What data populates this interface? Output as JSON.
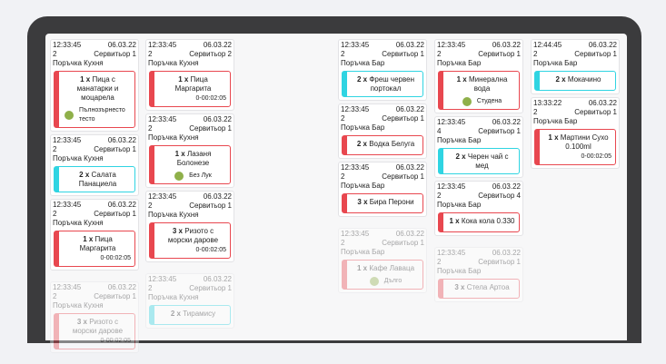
{
  "columns": [
    {
      "tickets": [
        {
          "time": "12:33:45",
          "date": "06.03.22",
          "table": "2",
          "waiter": "Сервитьор 1",
          "order": "Поръчка Кухня",
          "faded": false,
          "items": [
            {
              "qty": "1 x",
              "name": "Пица с манатарки и моцарела",
              "accent": "#e8474f",
              "modifier": "Пълнозърнесто тесто"
            }
          ]
        },
        {
          "time": "12:33:45",
          "date": "06.03.22",
          "table": "2",
          "waiter": "Сервитьор 1",
          "order": "Поръчка Кухня",
          "faded": false,
          "items": [
            {
              "qty": "2 x",
              "name": "Салата Панациела",
              "accent": "#2fd4e2"
            }
          ]
        },
        {
          "time": "12:33:45",
          "date": "06.03.22",
          "table": "2",
          "waiter": "Сервитьор 1",
          "order": "Поръчка Кухня",
          "faded": false,
          "items": [
            {
              "qty": "1 x",
              "name": "Пица Маргарита",
              "accent": "#e8474f",
              "timer": "0-00:02:05"
            }
          ]
        },
        {
          "time": "12:33:45",
          "date": "06.03.22",
          "table": "2",
          "waiter": "Сервитьор 1",
          "order": "Поръчка Кухня",
          "faded": true,
          "items": [
            {
              "qty": "3 x",
              "name": "Ризото с морски дарове",
              "accent": "#e8474f",
              "timer": "0-00:02:05"
            }
          ]
        }
      ]
    },
    {
      "tickets": [
        {
          "time": "12:33:45",
          "date": "06.03.22",
          "table": "2",
          "waiter": "Сервитьор 2",
          "order": "Поръчка Кухня",
          "faded": false,
          "items": [
            {
              "qty": "1 x",
              "name": "Пица Маргарита",
              "accent": "#e8474f",
              "timer": "0-00:02:05"
            }
          ]
        },
        {
          "time": "12:33:45",
          "date": "06.03.22",
          "table": "2",
          "waiter": "Сервитьор 1",
          "order": "Поръчка Кухня",
          "faded": false,
          "items": [
            {
              "qty": "1 x",
              "name": "Лазаня Болонезе",
              "accent": "#e8474f",
              "modifier": "Без Лук"
            }
          ]
        },
        {
          "time": "12:33:45",
          "date": "06.03.22",
          "table": "2",
          "waiter": "Сервитьор 1",
          "order": "Поръчка Кухня",
          "faded": false,
          "items": [
            {
              "qty": "3 x",
              "name": "Ризото с морски дарове",
              "accent": "#e8474f",
              "timer": "0-00:02:05"
            }
          ]
        },
        {
          "time": "12:33:45",
          "date": "06.03.22",
          "table": "2",
          "waiter": "Сервитьор 1",
          "order": "Поръчка Кухня",
          "faded": true,
          "items": [
            {
              "qty": "2 x",
              "name": "Тирамису",
              "accent": "#2fd4e2"
            }
          ]
        }
      ]
    },
    {
      "tickets": [
        {
          "time": "12:33:45",
          "date": "06.03.22",
          "table": "2",
          "waiter": "Сервитьор 1",
          "order": "Поръчка Бар",
          "faded": false,
          "items": [
            {
              "qty": "2 x",
              "name": "Фреш червен портокал",
              "accent": "#2fd4e2"
            }
          ]
        },
        {
          "time": "12:33:45",
          "date": "06.03.22",
          "table": "2",
          "waiter": "Сервитьор 1",
          "order": "Поръчка Бар",
          "faded": false,
          "items": [
            {
              "qty": "2 x",
              "name": "Водка Белуга",
              "accent": "#e8474f"
            }
          ]
        },
        {
          "time": "12:33:45",
          "date": "06.03.22",
          "table": "2",
          "waiter": "Сервитьор 1",
          "order": "Поръчка Бар",
          "faded": false,
          "items": [
            {
              "qty": "3 x",
              "name": "Бира Перони",
              "accent": "#e8474f"
            }
          ]
        },
        {
          "time": "12:33:45",
          "date": "06.03.22",
          "table": "2",
          "waiter": "Сервитьор 1",
          "order": "Поръчка Бар",
          "faded": true,
          "items": [
            {
              "qty": "1 x",
              "name": "Кафе Лаваца",
              "accent": "#e8474f",
              "modifier": "Дълго"
            }
          ]
        }
      ]
    },
    {
      "tickets": [
        {
          "time": "12:33:45",
          "date": "06.03.22",
          "table": "2",
          "waiter": "Сервитьор 1",
          "order": "Поръчка Бар",
          "faded": false,
          "items": [
            {
              "qty": "1 x",
              "name": "Минерална вода",
              "accent": "#e8474f",
              "modifier": "Студена"
            }
          ]
        },
        {
          "time": "12:33:45",
          "date": "06.03.22",
          "table": "4",
          "waiter": "Сервитьор 1",
          "order": "Поръчка Бар",
          "faded": false,
          "items": [
            {
              "qty": "2 x",
              "name": "Черен чай с мед",
              "accent": "#2fd4e2"
            }
          ]
        },
        {
          "time": "12:33:45",
          "date": "06.03.22",
          "table": "2",
          "waiter": "Сервитьор 4",
          "order": "Поръчка Бар",
          "faded": false,
          "items": [
            {
              "qty": "1 x",
              "name": "Кока кола 0.330",
              "accent": "#e8474f"
            }
          ]
        },
        {
          "time": "12:33:45",
          "date": "06.03.22",
          "table": "2",
          "waiter": "Сервитьор 1",
          "order": "Поръчка Бар",
          "faded": true,
          "items": [
            {
              "qty": "3 x",
              "name": "Стела Артоа",
              "accent": "#e8474f"
            }
          ]
        }
      ]
    },
    {
      "tickets": [
        {
          "time": "12:44:45",
          "date": "06.03.22",
          "table": "2",
          "waiter": "Сервитьор 1",
          "order": "Поръчка Бар",
          "faded": false,
          "items": [
            {
              "qty": "2 x",
              "name": "Мокачино",
              "accent": "#2fd4e2"
            }
          ]
        },
        {
          "time": "13:33:22",
          "date": "06.03.22",
          "table": "2",
          "waiter": "Сервитьор 1",
          "order": "Поръчка Бар",
          "faded": false,
          "items": [
            {
              "qty": "1 x",
              "name": "Мартини Сухо 0.100ml",
              "accent": "#e8474f",
              "timer": "0-00:02:05"
            }
          ]
        }
      ]
    }
  ]
}
